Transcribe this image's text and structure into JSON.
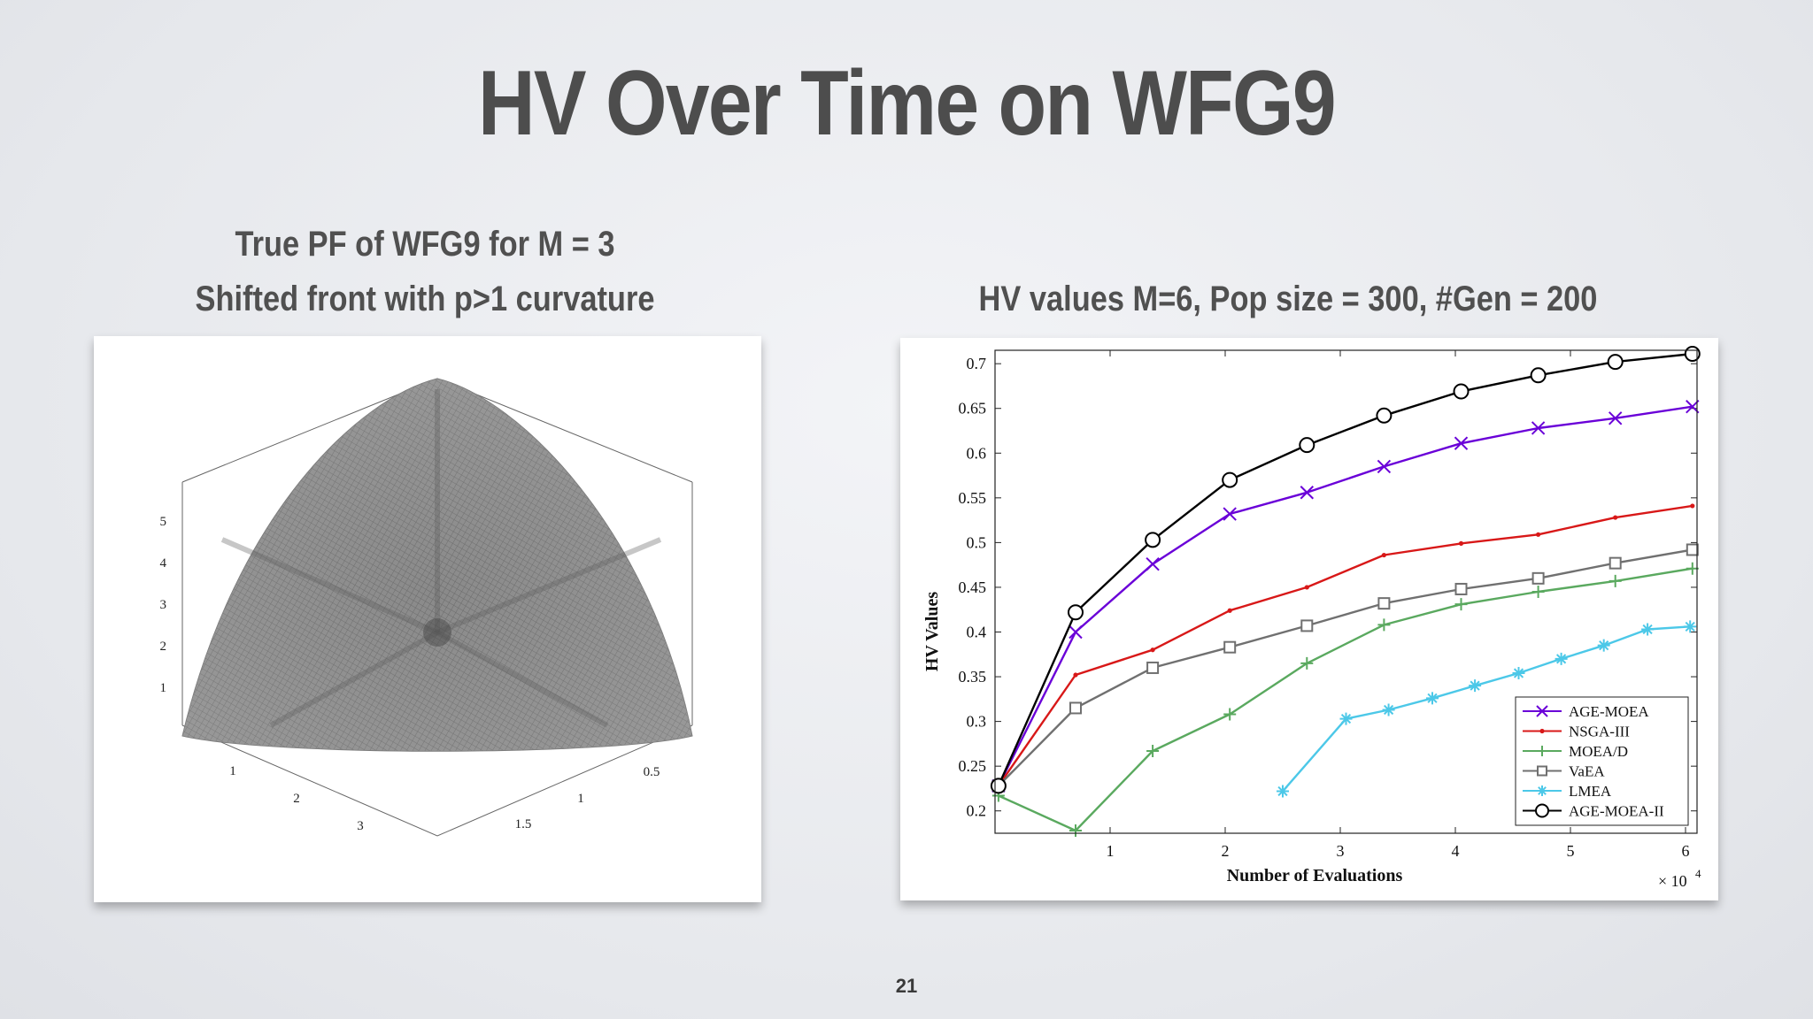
{
  "slide": {
    "title": "HV Over Time on WFG9",
    "left_caption_line1": "True PF of WFG9 for M = 3",
    "left_caption_line2": "Shifted front with p>1 curvature",
    "right_caption": "HV values M=6,  Pop size = 300,  #Gen = 200",
    "page_number": "21"
  },
  "surface_plot": {
    "z_ticks": [
      "5",
      "4",
      "3",
      "2",
      "1"
    ],
    "x_ticks": [
      "1",
      "2",
      "3"
    ],
    "y_ticks": [
      "0.5",
      "1",
      "1.5"
    ],
    "color": "#8c8c8c"
  },
  "chart_data": {
    "type": "line",
    "xlabel": "Number of Evaluations",
    "ylabel": "HV Values",
    "x_multiplier_label": "× 10",
    "x_multiplier_exp": "4",
    "xlim": [
      0,
      6.1
    ],
    "ylim": [
      0.175,
      0.715
    ],
    "x_ticks": [
      1,
      2,
      3,
      4,
      5,
      6
    ],
    "x_tick_labels": [
      "1",
      "2",
      "3",
      "4",
      "5",
      "6"
    ],
    "y_ticks": [
      0.2,
      0.25,
      0.3,
      0.35,
      0.4,
      0.45,
      0.5,
      0.55,
      0.6,
      0.65,
      0.7
    ],
    "y_tick_labels": [
      "0.2",
      "0.25",
      "0.3",
      "0.35",
      "0.4",
      "0.45",
      "0.5",
      "0.55",
      "0.6",
      "0.65",
      "0.7"
    ],
    "legend_position": "bottom-right",
    "series": [
      {
        "name": "AGE-MOEA",
        "color": "#6a00d8",
        "marker": "x",
        "x": [
          0.03,
          0.7,
          1.37,
          2.04,
          2.71,
          3.38,
          4.05,
          4.72,
          5.39,
          6.06
        ],
        "y": [
          0.228,
          0.4,
          0.476,
          0.532,
          0.556,
          0.585,
          0.611,
          0.628,
          0.639,
          0.652
        ]
      },
      {
        "name": "NSGA-III",
        "color": "#d81818",
        "marker": "dot",
        "x": [
          0.03,
          0.7,
          1.37,
          2.04,
          2.71,
          3.38,
          4.05,
          4.72,
          5.39,
          6.06
        ],
        "y": [
          0.228,
          0.352,
          0.38,
          0.424,
          0.45,
          0.486,
          0.499,
          0.509,
          0.528,
          0.541
        ]
      },
      {
        "name": "MOEA/D",
        "color": "#5aa95f",
        "marker": "plus",
        "x": [
          0.03,
          0.7,
          1.37,
          2.04,
          2.71,
          3.38,
          4.05,
          4.72,
          5.39,
          6.06
        ],
        "y": [
          0.217,
          0.178,
          0.267,
          0.308,
          0.365,
          0.408,
          0.431,
          0.445,
          0.457,
          0.471
        ]
      },
      {
        "name": "VaEA",
        "color": "#707070",
        "marker": "square",
        "x": [
          0.03,
          0.7,
          1.37,
          2.04,
          2.71,
          3.38,
          4.05,
          4.72,
          5.39,
          6.06
        ],
        "y": [
          0.228,
          0.315,
          0.36,
          0.383,
          0.407,
          0.432,
          0.448,
          0.46,
          0.477,
          0.492
        ]
      },
      {
        "name": "LMEA",
        "color": "#4cc8e8",
        "marker": "asterisk",
        "x": [
          2.5,
          3.05,
          3.42,
          3.8,
          4.17,
          4.55,
          4.92,
          5.29,
          5.67,
          6.04
        ],
        "y": [
          0.222,
          0.303,
          0.313,
          0.326,
          0.34,
          0.354,
          0.37,
          0.385,
          0.403,
          0.406
        ]
      },
      {
        "name": "AGE-MOEA-II",
        "color": "#000000",
        "marker": "circle",
        "x": [
          0.03,
          0.7,
          1.37,
          2.04,
          2.71,
          3.38,
          4.05,
          4.72,
          5.39,
          6.06
        ],
        "y": [
          0.228,
          0.422,
          0.503,
          0.57,
          0.609,
          0.642,
          0.669,
          0.687,
          0.702,
          0.711
        ]
      }
    ]
  }
}
